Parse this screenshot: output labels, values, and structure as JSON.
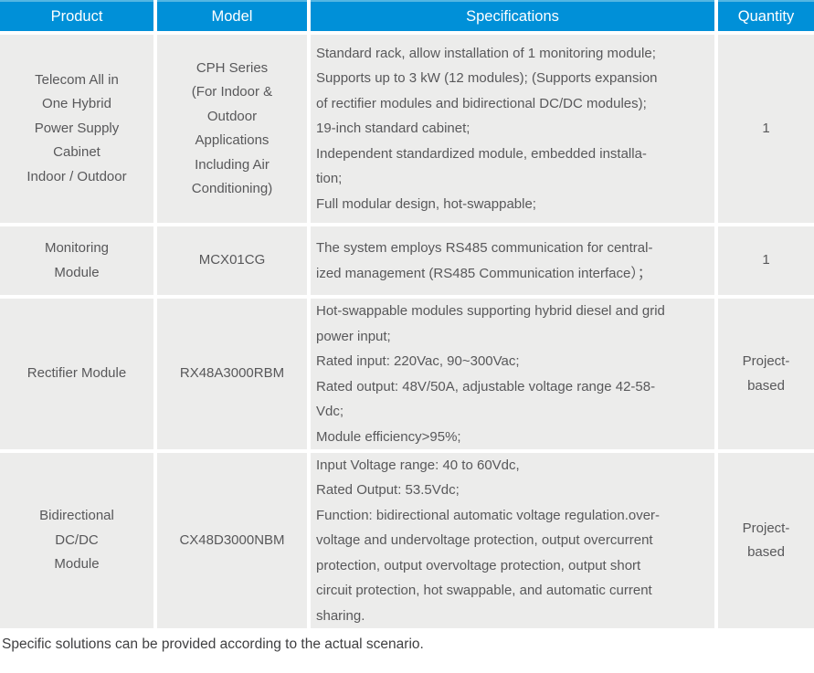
{
  "table": {
    "headers": {
      "product": "Product",
      "model": "Model",
      "specifications": "Specifications",
      "quantity": "Quantity"
    },
    "rows": [
      {
        "product": "Telecom All in\nOne Hybrid\nPower Supply\nCabinet\nIndoor / Outdoor",
        "model": "CPH Series\n(For Indoor &\nOutdoor\nApplications\nIncluding Air\nConditioning)",
        "specifications": "Standard rack, allow installation of 1 monitoring module;\nSupports up to 3 kW (12 modules); (Supports expansion\nof rectifier modules and bidirectional DC/DC modules);\n19-inch standard cabinet;\nIndependent standardized module, embedded installa-\ntion;\nFull modular design, hot-swappable;",
        "quantity": "1"
      },
      {
        "product": "Monitoring\nModule",
        "model": "MCX01CG",
        "specifications": "The system employs RS485 communication for central-\nized management (RS485 Communication interface）；",
        "quantity": "1"
      },
      {
        "product": "Rectifier Module",
        "model": "RX48A3000RBM",
        "specifications": "Hot-swappable modules supporting hybrid diesel and grid\npower input;\nRated input: 220Vac, 90~300Vac;\nRated output: 48V/50A, adjustable voltage range 42-58-\nVdc;\nModule efficiency>95%;",
        "quantity": "Project-\nbased"
      },
      {
        "product": "Bidirectional\nDC/DC\nModule",
        "model": "CX48D3000NBM",
        "specifications": "Input Voltage range: 40 to 60Vdc,\nRated Output: 53.5Vdc;\nFunction: bidirectional automatic voltage regulation.over-\nvoltage and undervoltage protection, output overcurrent\nprotection, output overvoltage protection, output short\ncircuit protection, hot swappable, and automatic current\nsharing.",
        "quantity": "Project-\nbased"
      }
    ]
  },
  "footer": {
    "note": "Specific solutions can be provided according to the actual scenario."
  },
  "colors": {
    "header_bg": "#0090d8",
    "header_top_accent": "#54b6e3",
    "header_text": "#ffffff",
    "cell_bg": "#ececeb",
    "body_text": "#58585a",
    "note_text": "#3f3f41",
    "gap": "#ffffff"
  }
}
